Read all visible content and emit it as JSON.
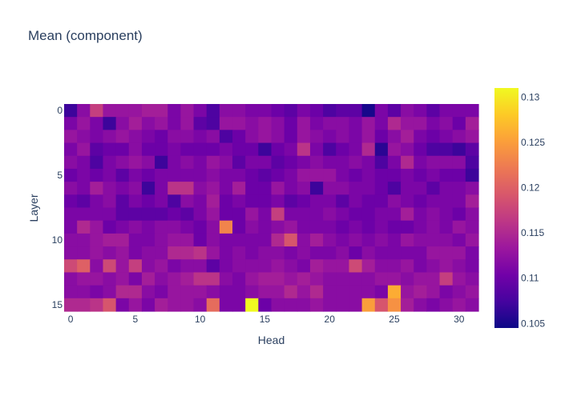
{
  "chart_data": {
    "type": "heatmap",
    "title": "Mean (component)",
    "xlabel": "Head",
    "ylabel": "Layer",
    "x_ticks": [
      "0",
      "5",
      "10",
      "15",
      "20",
      "25",
      "30"
    ],
    "y_ticks": [
      "0",
      "5",
      "10",
      "15"
    ],
    "colorbar_ticks": [
      "0.105",
      "0.11",
      "0.115",
      "0.12",
      "0.125",
      "0.13"
    ],
    "zmin": 0.1045,
    "zmax": 0.131,
    "colorscale": [
      "#0d0887",
      "#46039f",
      "#7201a8",
      "#9c179e",
      "#bd3786",
      "#d8576b",
      "#ed7953",
      "#fb9f3a",
      "#fdca26",
      "#f0f921"
    ],
    "n_rows": 16,
    "n_cols": 32,
    "z": [
      [
        0.107,
        0.112,
        0.117,
        0.113,
        0.113,
        0.113,
        0.114,
        0.114,
        0.111,
        0.113,
        0.111,
        0.108,
        0.112,
        0.112,
        0.111,
        0.111,
        0.11,
        0.109,
        0.111,
        0.11,
        0.108,
        0.109,
        0.109,
        0.105,
        0.111,
        0.109,
        0.112,
        0.111,
        0.109,
        0.111,
        0.111,
        0.111
      ],
      [
        0.111,
        0.113,
        0.111,
        0.107,
        0.112,
        0.114,
        0.112,
        0.113,
        0.111,
        0.113,
        0.109,
        0.108,
        0.113,
        0.113,
        0.112,
        0.113,
        0.112,
        0.11,
        0.113,
        0.111,
        0.112,
        0.112,
        0.111,
        0.113,
        0.111,
        0.115,
        0.113,
        0.113,
        0.111,
        0.112,
        0.11,
        0.114
      ],
      [
        0.113,
        0.112,
        0.111,
        0.112,
        0.113,
        0.112,
        0.111,
        0.11,
        0.112,
        0.112,
        0.111,
        0.112,
        0.108,
        0.11,
        0.112,
        0.113,
        0.112,
        0.11,
        0.113,
        0.112,
        0.111,
        0.112,
        0.111,
        0.113,
        0.11,
        0.112,
        0.114,
        0.111,
        0.11,
        0.111,
        0.112,
        0.113
      ],
      [
        0.111,
        0.113,
        0.109,
        0.11,
        0.11,
        0.112,
        0.11,
        0.11,
        0.111,
        0.11,
        0.11,
        0.11,
        0.111,
        0.11,
        0.11,
        0.107,
        0.11,
        0.111,
        0.116,
        0.111,
        0.108,
        0.11,
        0.111,
        0.115,
        0.106,
        0.113,
        0.112,
        0.11,
        0.108,
        0.108,
        0.107,
        0.109
      ],
      [
        0.112,
        0.111,
        0.108,
        0.111,
        0.112,
        0.113,
        0.112,
        0.107,
        0.111,
        0.112,
        0.111,
        0.113,
        0.112,
        0.109,
        0.111,
        0.111,
        0.109,
        0.11,
        0.111,
        0.112,
        0.111,
        0.111,
        0.112,
        0.111,
        0.108,
        0.111,
        0.115,
        0.111,
        0.112,
        0.112,
        0.112,
        0.108
      ],
      [
        0.11,
        0.111,
        0.11,
        0.111,
        0.109,
        0.111,
        0.11,
        0.111,
        0.111,
        0.111,
        0.111,
        0.112,
        0.111,
        0.111,
        0.11,
        0.109,
        0.11,
        0.111,
        0.113,
        0.113,
        0.113,
        0.111,
        0.11,
        0.111,
        0.11,
        0.11,
        0.111,
        0.11,
        0.111,
        0.11,
        0.11,
        0.107
      ],
      [
        0.112,
        0.111,
        0.114,
        0.112,
        0.111,
        0.112,
        0.107,
        0.111,
        0.116,
        0.116,
        0.112,
        0.113,
        0.111,
        0.114,
        0.11,
        0.11,
        0.113,
        0.111,
        0.112,
        0.107,
        0.112,
        0.112,
        0.111,
        0.111,
        0.11,
        0.108,
        0.111,
        0.111,
        0.109,
        0.111,
        0.111,
        0.112
      ],
      [
        0.11,
        0.109,
        0.111,
        0.112,
        0.109,
        0.111,
        0.11,
        0.111,
        0.108,
        0.112,
        0.111,
        0.114,
        0.11,
        0.111,
        0.11,
        0.11,
        0.111,
        0.109,
        0.11,
        0.111,
        0.111,
        0.109,
        0.111,
        0.11,
        0.11,
        0.112,
        0.111,
        0.11,
        0.111,
        0.111,
        0.111,
        0.114
      ],
      [
        0.111,
        0.111,
        0.111,
        0.111,
        0.109,
        0.109,
        0.109,
        0.109,
        0.11,
        0.109,
        0.111,
        0.113,
        0.11,
        0.11,
        0.113,
        0.111,
        0.117,
        0.111,
        0.111,
        0.111,
        0.112,
        0.111,
        0.11,
        0.11,
        0.111,
        0.111,
        0.114,
        0.111,
        0.112,
        0.111,
        0.11,
        0.112
      ],
      [
        0.111,
        0.115,
        0.113,
        0.11,
        0.111,
        0.112,
        0.111,
        0.112,
        0.112,
        0.111,
        0.11,
        0.112,
        0.123,
        0.11,
        0.112,
        0.111,
        0.112,
        0.113,
        0.111,
        0.111,
        0.111,
        0.11,
        0.111,
        0.11,
        0.111,
        0.11,
        0.11,
        0.111,
        0.112,
        0.111,
        0.113,
        0.112
      ],
      [
        0.112,
        0.112,
        0.113,
        0.114,
        0.114,
        0.111,
        0.111,
        0.112,
        0.113,
        0.113,
        0.11,
        0.112,
        0.111,
        0.111,
        0.111,
        0.111,
        0.115,
        0.119,
        0.112,
        0.114,
        0.112,
        0.111,
        0.112,
        0.111,
        0.112,
        0.111,
        0.113,
        0.112,
        0.112,
        0.112,
        0.111,
        0.113
      ],
      [
        0.112,
        0.112,
        0.113,
        0.112,
        0.113,
        0.111,
        0.112,
        0.112,
        0.115,
        0.115,
        0.116,
        0.113,
        0.111,
        0.112,
        0.111,
        0.112,
        0.112,
        0.111,
        0.112,
        0.111,
        0.111,
        0.112,
        0.11,
        0.112,
        0.111,
        0.111,
        0.111,
        0.111,
        0.113,
        0.113,
        0.113,
        0.111
      ],
      [
        0.118,
        0.12,
        0.112,
        0.118,
        0.113,
        0.117,
        0.112,
        0.113,
        0.111,
        0.112,
        0.112,
        0.109,
        0.111,
        0.112,
        0.112,
        0.112,
        0.113,
        0.112,
        0.111,
        0.114,
        0.113,
        0.113,
        0.118,
        0.114,
        0.112,
        0.112,
        0.113,
        0.111,
        0.112,
        0.113,
        0.112,
        0.111
      ],
      [
        0.112,
        0.113,
        0.113,
        0.112,
        0.113,
        0.111,
        0.114,
        0.112,
        0.113,
        0.114,
        0.116,
        0.116,
        0.112,
        0.111,
        0.113,
        0.114,
        0.114,
        0.113,
        0.114,
        0.113,
        0.112,
        0.112,
        0.112,
        0.112,
        0.113,
        0.113,
        0.112,
        0.113,
        0.113,
        0.117,
        0.113,
        0.112
      ],
      [
        0.112,
        0.112,
        0.111,
        0.112,
        0.115,
        0.115,
        0.112,
        0.111,
        0.113,
        0.113,
        0.113,
        0.112,
        0.111,
        0.111,
        0.112,
        0.113,
        0.113,
        0.115,
        0.113,
        0.115,
        0.112,
        0.112,
        0.112,
        0.112,
        0.111,
        0.126,
        0.113,
        0.114,
        0.113,
        0.111,
        0.112,
        0.113
      ],
      [
        0.115,
        0.115,
        0.116,
        0.119,
        0.111,
        0.113,
        0.111,
        0.114,
        0.113,
        0.113,
        0.112,
        0.121,
        0.111,
        0.111,
        0.131,
        0.11,
        0.112,
        0.112,
        0.112,
        0.113,
        0.112,
        0.112,
        0.112,
        0.125,
        0.119,
        0.124,
        0.114,
        0.112,
        0.111,
        0.112,
        0.113,
        0.112
      ]
    ]
  }
}
